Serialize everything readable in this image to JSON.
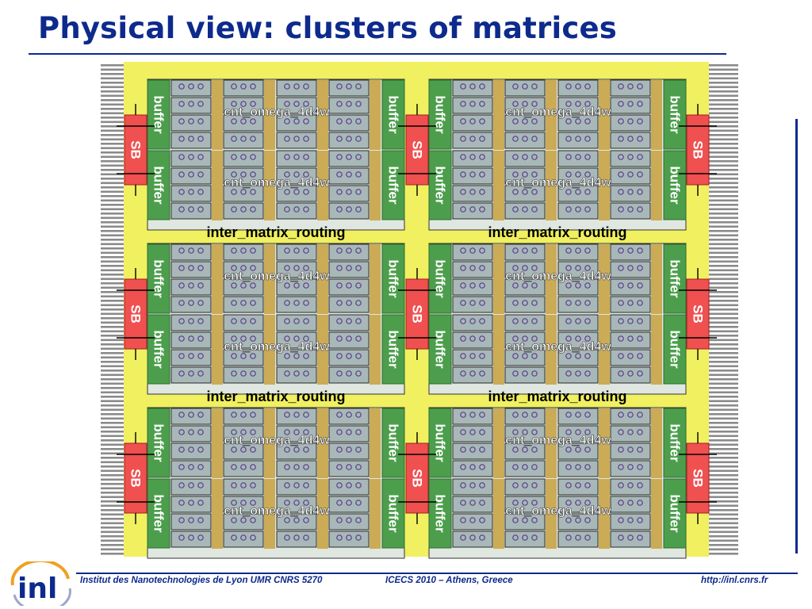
{
  "slide": {
    "title": "Physical view: clusters of matrices"
  },
  "diagram": {
    "labels": {
      "buffer": "buffer",
      "switch_box": "SB",
      "matrix": "cnt_omega_4d4w",
      "routing": "inter_matrix_routing"
    },
    "grid": {
      "cluster_rows": 3,
      "cluster_cols": 2,
      "matrices_per_cluster": 2,
      "cells_per_matrix_row": 4
    },
    "colors": {
      "routing_area": "#f0f060",
      "wire_tracks": "#8a8a8a",
      "buffer": "#4c9e4c",
      "switch_box": "#f05050",
      "cell": "#a8b8b8",
      "cell_border": "#2a2a2a",
      "spacer": "#c8a03c",
      "label_text": "#ffffff",
      "routing_text": "#000000"
    }
  },
  "footer": {
    "institute": "Institut des Nanotechnologies de Lyon UMR CNRS 5270",
    "event": "ICECS 2010 – Athens, Greece",
    "url": "http://inl.cnrs.fr",
    "logo_text": "inl"
  }
}
